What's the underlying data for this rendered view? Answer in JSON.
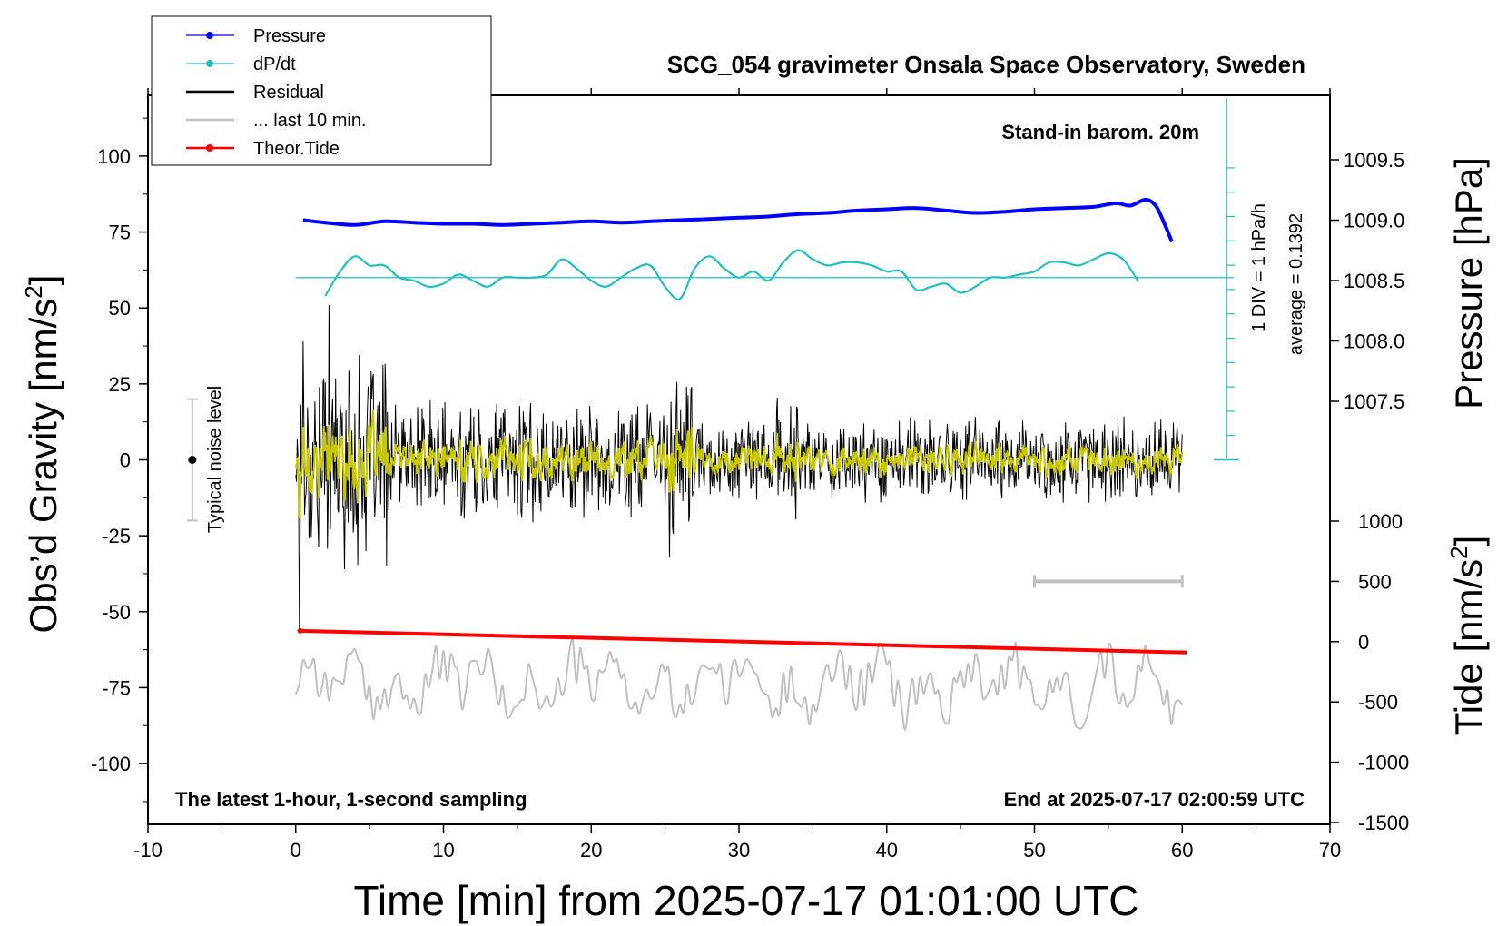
{
  "chart_data": {
    "type": "line",
    "title": "SCG_054 gravimeter Onsala Space Observatory, Sweden",
    "xlabel": "Time [min] from 2025-07-17 01:01:00 UTC",
    "ylabel_left": "Obs’d Gravity [nm/s",
    "ylabel_right_top": "Pressure [hPa]",
    "ylabel_right_bottom": "Tide [nm/s",
    "superscript": "2",
    "xlim": [
      -10,
      70
    ],
    "ylim": [
      -120,
      120
    ],
    "x_ticks": [
      "-10",
      "0",
      "10",
      "20",
      "30",
      "40",
      "50",
      "60",
      "70"
    ],
    "y_ticks": [
      "100",
      "75",
      "50",
      "25",
      "0",
      "-25",
      "-50",
      "-75",
      "-100"
    ],
    "pressure_ticks": [
      "1009.5",
      "1009.0",
      "1008.5",
      "1008.0",
      "1007.5"
    ],
    "tide_ticks": [
      "1000",
      "500",
      "0",
      "-500",
      "-1000",
      "-1500"
    ],
    "legend": [
      "Pressure",
      "dP/dt",
      "Residual",
      "... last 10 min.",
      "Theor.Tide"
    ],
    "annotations": {
      "barometer": "Stand-in barom. 20m",
      "div_label": "1 DIV = 1 hPa/h",
      "average": "average = 0.1392",
      "noise": "Typical noise level",
      "bottom_left": "The latest 1-hour, 1-second sampling",
      "bottom_right": "End at 2025-07-17 02:00:59 UTC"
    },
    "colors": {
      "pressure": "#0000ff",
      "dpdt": "#20c0c0",
      "residual": "#000000",
      "smooth": "#c8c800",
      "last10": "#c0c0c0",
      "tide": "#ff0000"
    },
    "series": [
      {
        "name": "Pressure",
        "axis": "pressure_hPa",
        "x": [
          0.5,
          2,
          4,
          6,
          8,
          10,
          12,
          14,
          16,
          18,
          20,
          22,
          24,
          26,
          28,
          30,
          32,
          34,
          36,
          38,
          40,
          42,
          44,
          46,
          48,
          50,
          52,
          54,
          55.5,
          56.5,
          57.5,
          58.2,
          58.8,
          59.3
        ],
        "y": [
          1009.0,
          1008.98,
          1008.96,
          1008.99,
          1008.98,
          1008.97,
          1008.97,
          1008.96,
          1008.97,
          1008.98,
          1008.99,
          1008.98,
          1008.99,
          1009.0,
          1009.01,
          1009.02,
          1009.03,
          1009.05,
          1009.06,
          1009.08,
          1009.09,
          1009.1,
          1009.08,
          1009.06,
          1009.07,
          1009.09,
          1009.1,
          1009.11,
          1009.14,
          1009.12,
          1009.17,
          1009.12,
          1008.97,
          1008.82
        ]
      },
      {
        "name": "dP/dt",
        "axis": "gravity_offset",
        "x": [
          2,
          3,
          4,
          5,
          6,
          7,
          8,
          9,
          10,
          11,
          12,
          13,
          14,
          15,
          16,
          17,
          18,
          19,
          20,
          21,
          22,
          23,
          24,
          25,
          26,
          27,
          28,
          29,
          30,
          31,
          32,
          33,
          34,
          35,
          36,
          37,
          38,
          39,
          40,
          41,
          42,
          43,
          44,
          45,
          46,
          47,
          48,
          49,
          50,
          51,
          52,
          53,
          54,
          55,
          56,
          57
        ],
        "y": [
          54,
          62,
          67,
          64,
          64,
          60,
          59,
          57,
          58,
          61,
          59,
          57,
          60,
          60,
          60,
          61,
          66,
          63,
          59,
          57,
          60,
          63,
          64,
          57,
          53,
          63,
          67,
          63,
          60,
          62,
          59,
          65,
          69,
          66,
          64,
          65,
          65,
          64,
          62,
          62,
          56,
          57,
          58,
          55,
          57,
          60,
          60,
          61,
          62,
          65,
          65,
          64,
          66,
          68,
          66,
          59
        ]
      },
      {
        "name": "Theor.Tide",
        "axis": "tide_nm_s2",
        "x": [
          0.3,
          60.3
        ],
        "y": [
          90,
          -90
        ]
      },
      {
        "name": "Residual",
        "axis": "gravity",
        "x_range": [
          0,
          60
        ],
        "y_range": [
          -56,
          51
        ],
        "note": "1-second samples; noise amplitude about ±35 nm/s² in minutes 0–6, about ±15 nm/s² elsewhere"
      },
      {
        "name": "... last 10 min.",
        "axis": "gravity",
        "note": "errorbar marking the 50–60 min window at -40 nm/s²; grey trace around -70 to -89 nm/s²",
        "x_range": [
          50,
          60
        ],
        "y": -40
      }
    ],
    "noise_level": {
      "x": -7,
      "center": 0,
      "low": -20,
      "high": 20
    }
  }
}
